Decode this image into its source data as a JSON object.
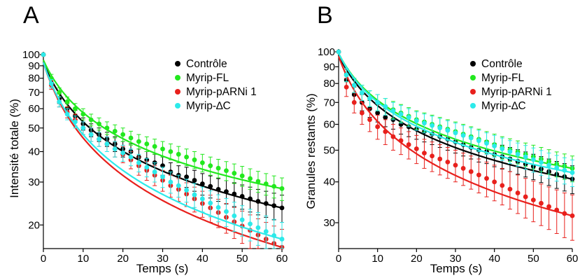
{
  "chart_data": [
    {
      "type": "scatter",
      "panel": "A",
      "xlabel": "Temps (s)",
      "ylabel": "Intensité totale (%)",
      "y_scale": "log",
      "xlim": [
        0,
        60
      ],
      "ylim": [
        16,
        100
      ],
      "x_ticks": [
        0,
        10,
        20,
        30,
        40,
        50,
        60
      ],
      "y_ticks": [
        20,
        30,
        40,
        50,
        60,
        70,
        80,
        90,
        100
      ],
      "legend_position": "top-right",
      "grid": false,
      "x": [
        0,
        2,
        4,
        6,
        8,
        10,
        12,
        14,
        16,
        18,
        20,
        22,
        24,
        26,
        28,
        30,
        32,
        34,
        36,
        38,
        40,
        42,
        44,
        46,
        48,
        50,
        52,
        54,
        56,
        58,
        60
      ],
      "series": [
        {
          "name": "Contrôle",
          "color": "#000000",
          "values": [
            100,
            76,
            66,
            60,
            56,
            52,
            49,
            47,
            45,
            43,
            41,
            40,
            38,
            37,
            36,
            35,
            33,
            32,
            31.5,
            30.5,
            29.5,
            28.8,
            28,
            27.4,
            26.8,
            26.2,
            25.6,
            25,
            24.5,
            24,
            23.5
          ],
          "errors": [
            0,
            3,
            3,
            3,
            3,
            3,
            3,
            3,
            3,
            3,
            3,
            3,
            3,
            3,
            3,
            3,
            3,
            3,
            3,
            3,
            3,
            3,
            3,
            3,
            3,
            3,
            3,
            3,
            3,
            3,
            3
          ],
          "fit_start": 93
        },
        {
          "name": "Myrip-FL",
          "color": "#22e81e",
          "values": [
            100,
            80,
            70,
            64,
            60,
            57,
            54,
            52,
            50,
            48.5,
            47,
            45.5,
            44,
            43,
            42,
            41,
            40,
            39,
            38,
            37,
            36,
            35,
            34.2,
            33.4,
            32.6,
            31.8,
            31,
            30.2,
            29.5,
            28.8,
            28.2
          ],
          "errors": [
            0,
            3,
            3,
            3,
            3,
            3,
            3,
            3,
            3,
            3,
            3,
            3,
            3,
            3,
            3,
            3,
            3,
            3,
            3,
            3,
            3,
            3,
            3,
            3,
            3,
            3,
            3,
            3,
            3,
            3,
            3
          ],
          "fit_start": 95
        },
        {
          "name": "Myrip-pARNi 1",
          "color": "#e8201c",
          "values": [
            100,
            75,
            64,
            58,
            54,
            50,
            47,
            45,
            43,
            41,
            39,
            37,
            35,
            33.5,
            32,
            30.5,
            29,
            28,
            26.8,
            25.6,
            24.5,
            23.5,
            22.5,
            21.5,
            20.6,
            19.8,
            19,
            18.2,
            17.5,
            16.8,
            16.2
          ],
          "errors": [
            0,
            3,
            3,
            3,
            3,
            3,
            3,
            3,
            3,
            3,
            3,
            3,
            3,
            3,
            3,
            3,
            3,
            3,
            3,
            3,
            3,
            3,
            3,
            3,
            3,
            3,
            3,
            3,
            3,
            3,
            3
          ],
          "fit_start": 93
        },
        {
          "name": "Myrip-∆C",
          "color": "#2ceaea",
          "values": [
            100,
            76,
            64,
            57,
            53,
            50,
            47,
            45,
            43,
            41,
            39.5,
            38,
            36,
            34.5,
            33,
            31.5,
            30,
            29,
            27.8,
            26.6,
            25.6,
            24.6,
            23.6,
            22.7,
            21.8,
            21,
            20.2,
            19.5,
            18.8,
            18.1,
            17.5
          ],
          "errors": [
            0,
            3,
            3,
            3,
            3,
            3,
            3,
            3,
            3,
            3,
            3,
            3,
            3,
            3,
            3,
            3,
            3,
            3,
            3,
            3,
            3,
            3,
            3,
            3,
            3,
            3,
            3,
            3,
            3,
            3,
            3
          ],
          "fit_start": 93
        }
      ]
    },
    {
      "type": "scatter",
      "panel": "B",
      "xlabel": "Temps (s)",
      "ylabel": "Granules restants (%)",
      "y_scale": "log",
      "xlim": [
        0,
        60
      ],
      "ylim": [
        25,
        100
      ],
      "x_ticks": [
        0,
        10,
        20,
        30,
        40,
        50,
        60
      ],
      "y_ticks": [
        30,
        40,
        50,
        60,
        70,
        80,
        90,
        100
      ],
      "legend_position": "top-right",
      "grid": false,
      "x": [
        0,
        2,
        4,
        6,
        8,
        10,
        12,
        14,
        16,
        18,
        20,
        22,
        24,
        26,
        28,
        30,
        32,
        34,
        36,
        38,
        40,
        42,
        44,
        46,
        48,
        50,
        52,
        54,
        56,
        58,
        60
      ],
      "series": [
        {
          "name": "Contrôle",
          "color": "#000000",
          "values": [
            100,
            82,
            74,
            70,
            67,
            65,
            63,
            62,
            60,
            59,
            58,
            57,
            56,
            55,
            54,
            53,
            52,
            51,
            50,
            49.5,
            48.5,
            47.8,
            47,
            46.2,
            45.4,
            44.6,
            43.8,
            43,
            42.2,
            41.5,
            40.8
          ],
          "errors": [
            0,
            4,
            4,
            4,
            4,
            4,
            4,
            4,
            4,
            4,
            4,
            4,
            4,
            4,
            4,
            4,
            4,
            4,
            4,
            4,
            4,
            4,
            4,
            4,
            4,
            4,
            4,
            4,
            4,
            4,
            4
          ],
          "fit_start": 98
        },
        {
          "name": "Myrip-FL",
          "color": "#22e81e",
          "values": [
            100,
            85,
            79,
            75,
            72,
            70,
            68,
            66.5,
            65,
            63.5,
            62,
            61,
            60,
            59,
            58,
            57,
            56,
            55,
            54,
            53,
            52,
            51,
            50.2,
            49.4,
            48.6,
            47.8,
            47,
            46.2,
            45.4,
            44.7,
            44
          ],
          "errors": [
            0,
            4,
            4,
            4,
            4,
            4,
            4,
            4,
            4,
            4,
            4,
            4,
            4,
            4,
            4,
            4,
            4,
            4,
            4,
            4,
            4,
            4,
            4,
            4,
            4,
            4,
            4,
            4,
            4,
            4,
            4
          ],
          "fit_start": 99
        },
        {
          "name": "Myrip-pARNi 1",
          "color": "#e8201c",
          "values": [
            100,
            78,
            70,
            65,
            62,
            59,
            57,
            55,
            53.5,
            52,
            50.5,
            49,
            48,
            47,
            46,
            45,
            44,
            43,
            42,
            41,
            40,
            39,
            38,
            37,
            36,
            35.2,
            34.4,
            33.6,
            32.8,
            32,
            31.5
          ],
          "errors": [
            0,
            5,
            5,
            5,
            5,
            5,
            5,
            5,
            5,
            5,
            5,
            5,
            5,
            5,
            5,
            5,
            5,
            5,
            5,
            5,
            5,
            5,
            5,
            5,
            5,
            5,
            5,
            5,
            5,
            5,
            5
          ],
          "fit_start": 97
        },
        {
          "name": "Myrip-∆C",
          "color": "#2ceaea",
          "values": [
            100,
            85,
            79,
            75,
            72,
            70,
            68,
            66,
            64.5,
            63,
            61.5,
            60.5,
            59.5,
            58.5,
            57.5,
            56.5,
            55.5,
            54.5,
            53.5,
            52.5,
            51.5,
            50.5,
            49.5,
            48.6,
            47.7,
            46.8,
            45.9,
            45,
            44.2,
            43.4,
            42.7
          ],
          "errors": [
            0,
            4,
            4,
            4,
            4,
            4,
            4,
            4,
            4,
            4,
            4,
            4,
            4,
            4,
            4,
            4,
            4,
            4,
            4,
            4,
            4,
            4,
            4,
            4,
            4,
            4,
            4,
            4,
            4,
            4,
            4
          ],
          "fit_start": 99
        }
      ]
    }
  ]
}
